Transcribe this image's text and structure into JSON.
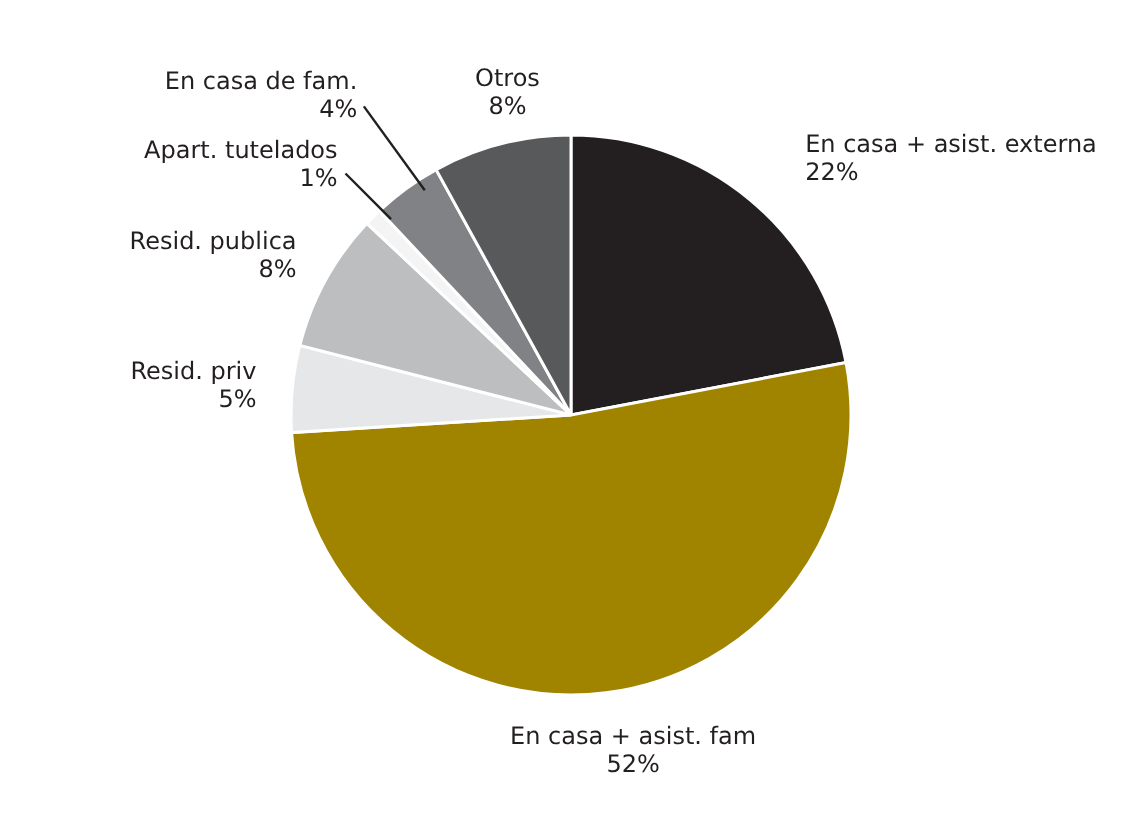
{
  "chart_data": {
    "type": "pie",
    "categories": [
      "En casa + asist. externa",
      "En casa + asist. fam",
      "Resid. priv",
      "Resid. publica",
      "Apart. tutelados",
      "En casa de fam.",
      "Otros"
    ],
    "values": [
      22,
      52,
      5,
      8,
      1,
      4,
      8
    ],
    "value_labels": [
      "22%",
      "52%",
      "5%",
      "8%",
      "1%",
      "4%",
      "8%"
    ],
    "colors": [
      "#231f20",
      "#a08400",
      "#e6e7e8",
      "#bcbec0",
      "#f4f4f4",
      "#808285",
      "#58595b"
    ]
  }
}
